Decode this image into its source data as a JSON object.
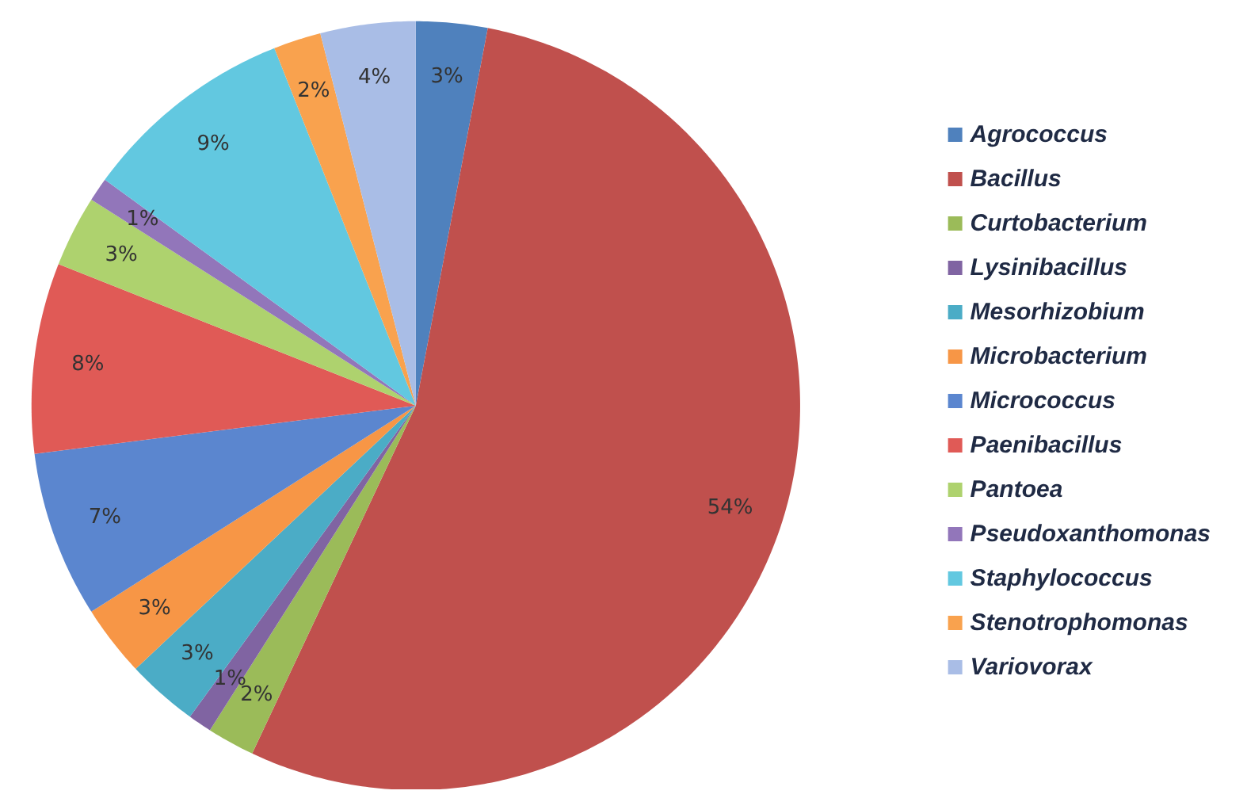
{
  "chart_data": {
    "type": "pie",
    "categories": [
      "Agrococcus",
      "Bacillus",
      "Curtobacterium",
      "Lysinibacillus",
      "Mesorhizobium",
      "Microbacterium",
      "Micrococcus",
      "Paenibacillus",
      "Pantoea",
      "Pseudoxanthomonas",
      "Staphylococcus",
      "Stenotrophomonas",
      "Variovorax"
    ],
    "values": [
      3,
      54,
      2,
      1,
      3,
      3,
      7,
      8,
      3,
      1,
      9,
      2,
      4
    ],
    "value_labels": [
      "3%",
      "54%",
      "2%",
      "1%",
      "3%",
      "3%",
      "7%",
      "8%",
      "3%",
      "1%",
      "9%",
      "2%",
      "4%"
    ],
    "colors": [
      "#4f81bd",
      "#c0504d",
      "#9bbb59",
      "#8064a2",
      "#4bacc6",
      "#f79646",
      "#5b86cf",
      "#e05a56",
      "#aed26e",
      "#9276ba",
      "#62c8e0",
      "#f9a24e",
      "#a9bde6"
    ],
    "legend": "right"
  }
}
